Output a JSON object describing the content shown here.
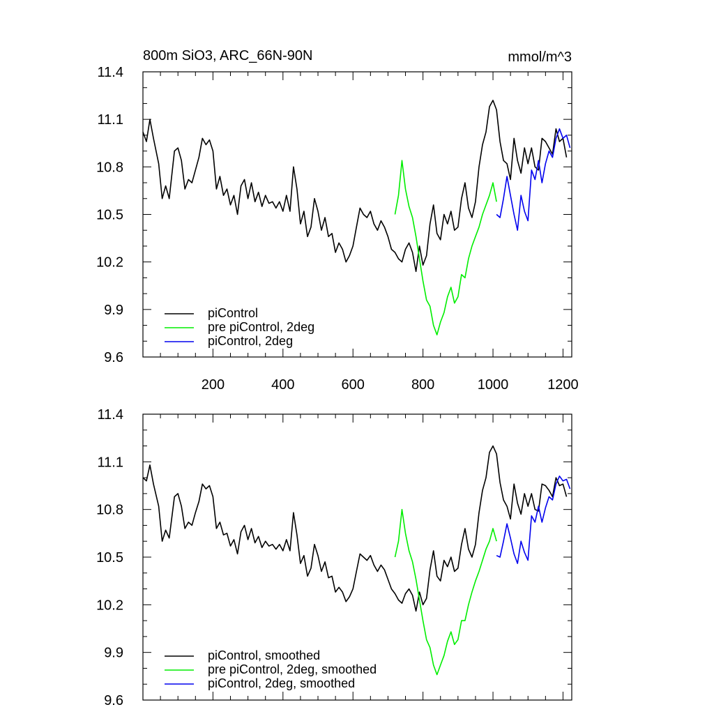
{
  "chart_data": [
    {
      "type": "line",
      "title": "800m SiO3, ARC_66N-90N",
      "units": "mmol/m^3",
      "xlim": [
        0,
        1225
      ],
      "ylim": [
        9.6,
        11.4
      ],
      "xticks": [
        200,
        400,
        600,
        800,
        1000,
        1200
      ],
      "xtick_labels": [
        "200",
        "400",
        "600",
        "800",
        "1000",
        "1200"
      ],
      "yticks": [
        9.6,
        9.9,
        10.2,
        10.5,
        10.8,
        11.1,
        11.4
      ],
      "ytick_labels": [
        "9.6",
        "9.9",
        "10.2",
        "10.5",
        "10.8",
        "11.1",
        "11.4"
      ],
      "legend_position": "bottom-left",
      "series": [
        {
          "name": "piControl",
          "color": "#000000",
          "x": [
            0,
            10,
            20,
            30,
            45,
            55,
            65,
            75,
            90,
            100,
            110,
            120,
            130,
            140,
            150,
            160,
            170,
            180,
            190,
            200,
            210,
            220,
            230,
            240,
            250,
            260,
            270,
            280,
            290,
            300,
            310,
            320,
            330,
            340,
            350,
            360,
            370,
            380,
            390,
            400,
            410,
            420,
            430,
            440,
            450,
            460,
            470,
            480,
            490,
            500,
            510,
            520,
            530,
            540,
            550,
            560,
            570,
            580,
            590,
            600,
            610,
            620,
            630,
            640,
            650,
            660,
            670,
            680,
            690,
            700,
            710,
            720,
            730,
            740,
            750,
            760,
            770,
            780,
            790,
            800,
            810,
            820,
            830,
            840,
            850,
            860,
            870,
            880,
            890,
            900,
            910,
            920,
            930,
            940,
            950,
            960,
            970,
            980,
            990,
            1000,
            1010,
            1020,
            1030,
            1040,
            1050,
            1060,
            1070,
            1080,
            1090,
            1100,
            1110,
            1120,
            1130,
            1140,
            1150,
            1160,
            1170,
            1180,
            1190,
            1200,
            1210
          ],
          "y": [
            11.02,
            10.96,
            11.1,
            10.98,
            10.82,
            10.6,
            10.68,
            10.6,
            10.9,
            10.92,
            10.84,
            10.66,
            10.72,
            10.7,
            10.78,
            10.86,
            10.98,
            10.94,
            10.97,
            10.9,
            10.66,
            10.74,
            10.62,
            10.66,
            10.56,
            10.62,
            10.5,
            10.68,
            10.72,
            10.6,
            10.7,
            10.58,
            10.64,
            10.55,
            10.62,
            10.57,
            10.58,
            10.54,
            10.58,
            10.52,
            10.62,
            10.52,
            10.8,
            10.66,
            10.44,
            10.52,
            10.36,
            10.42,
            10.6,
            10.52,
            10.4,
            10.48,
            10.36,
            10.38,
            10.26,
            10.32,
            10.28,
            10.2,
            10.24,
            10.3,
            10.42,
            10.54,
            10.5,
            10.48,
            10.52,
            10.44,
            10.4,
            10.46,
            10.42,
            10.36,
            10.28,
            10.26,
            10.22,
            10.2,
            10.28,
            10.32,
            10.26,
            10.14,
            10.3,
            10.18,
            10.24,
            10.44,
            10.56,
            10.38,
            10.34,
            10.5,
            10.44,
            10.52,
            10.4,
            10.42,
            10.6,
            10.7,
            10.54,
            10.48,
            10.58,
            10.8,
            10.94,
            11.02,
            11.18,
            11.22,
            11.16,
            10.96,
            10.84,
            10.82,
            10.72,
            10.98,
            10.84,
            10.76,
            10.92,
            10.82,
            10.92,
            10.8,
            10.78,
            10.98,
            10.96,
            10.92,
            10.88,
            11.04,
            10.96,
            10.98,
            10.86
          ]
        },
        {
          "name": "pre piControl, 2deg",
          "color": "#00ee00",
          "x": [
            720,
            730,
            740,
            750,
            760,
            770,
            780,
            790,
            800,
            810,
            820,
            830,
            840,
            850,
            860,
            870,
            880,
            890,
            900,
            910,
            920,
            930,
            940,
            950,
            960,
            970,
            980,
            990,
            1000,
            1010
          ],
          "y": [
            10.5,
            10.62,
            10.84,
            10.66,
            10.55,
            10.48,
            10.36,
            10.22,
            10.08,
            9.96,
            9.92,
            9.8,
            9.74,
            9.82,
            9.88,
            9.98,
            10.04,
            9.94,
            9.98,
            10.12,
            10.1,
            10.22,
            10.3,
            10.36,
            10.42,
            10.5,
            10.56,
            10.62,
            10.7,
            10.58
          ]
        },
        {
          "name": "piControl, 2deg",
          "color": "#0000ee",
          "x": [
            1010,
            1020,
            1030,
            1040,
            1050,
            1060,
            1070,
            1080,
            1090,
            1100,
            1110,
            1120,
            1130,
            1140,
            1150,
            1160,
            1170,
            1180,
            1190,
            1200,
            1210,
            1220
          ],
          "y": [
            10.5,
            10.48,
            10.6,
            10.74,
            10.62,
            10.5,
            10.4,
            10.62,
            10.52,
            10.46,
            10.78,
            10.72,
            10.84,
            10.7,
            10.82,
            10.9,
            10.86,
            10.98,
            11.04,
            10.98,
            11.0,
            10.92
          ]
        }
      ]
    },
    {
      "type": "line",
      "xlim": [
        0,
        1225
      ],
      "ylim": [
        9.6,
        11.4
      ],
      "xticks": [
        200,
        400,
        600,
        800,
        1000,
        1200
      ],
      "yticks": [
        9.6,
        9.9,
        10.2,
        10.5,
        10.8,
        11.1,
        11.4
      ],
      "ytick_labels": [
        "9.6",
        "9.9",
        "10.2",
        "10.5",
        "10.8",
        "11.1",
        "11.4"
      ],
      "legend_position": "bottom-left",
      "series": [
        {
          "name": "piControl, smoothed",
          "color": "#000000",
          "x": [
            0,
            10,
            20,
            30,
            45,
            55,
            65,
            75,
            90,
            100,
            110,
            120,
            130,
            140,
            150,
            160,
            170,
            180,
            190,
            200,
            210,
            220,
            230,
            240,
            250,
            260,
            270,
            280,
            290,
            300,
            310,
            320,
            330,
            340,
            350,
            360,
            370,
            380,
            390,
            400,
            410,
            420,
            430,
            440,
            450,
            460,
            470,
            480,
            490,
            500,
            510,
            520,
            530,
            540,
            550,
            560,
            570,
            580,
            590,
            600,
            610,
            620,
            630,
            640,
            650,
            660,
            670,
            680,
            690,
            700,
            710,
            720,
            730,
            740,
            750,
            760,
            770,
            780,
            790,
            800,
            810,
            820,
            830,
            840,
            850,
            860,
            870,
            880,
            890,
            900,
            910,
            920,
            930,
            940,
            950,
            960,
            970,
            980,
            990,
            1000,
            1010,
            1020,
            1030,
            1040,
            1050,
            1060,
            1070,
            1080,
            1090,
            1100,
            1110,
            1120,
            1130,
            1140,
            1150,
            1160,
            1170,
            1180,
            1190,
            1200,
            1210
          ],
          "y": [
            11.0,
            10.98,
            11.08,
            10.96,
            10.82,
            10.6,
            10.67,
            10.62,
            10.88,
            10.9,
            10.82,
            10.68,
            10.72,
            10.7,
            10.78,
            10.85,
            10.96,
            10.93,
            10.95,
            10.88,
            10.68,
            10.72,
            10.64,
            10.65,
            10.57,
            10.61,
            10.52,
            10.66,
            10.7,
            10.61,
            10.68,
            10.59,
            10.63,
            10.56,
            10.6,
            10.57,
            10.58,
            10.55,
            10.58,
            10.54,
            10.61,
            10.54,
            10.78,
            10.64,
            10.46,
            10.51,
            10.38,
            10.43,
            10.58,
            10.51,
            10.41,
            10.47,
            10.37,
            10.38,
            10.28,
            10.31,
            10.28,
            10.22,
            10.25,
            10.3,
            10.41,
            10.52,
            10.5,
            10.48,
            10.51,
            10.45,
            10.41,
            10.45,
            10.42,
            10.36,
            10.3,
            10.27,
            10.23,
            10.21,
            10.27,
            10.3,
            10.26,
            10.16,
            10.28,
            10.2,
            10.24,
            10.42,
            10.54,
            10.38,
            10.35,
            10.48,
            10.44,
            10.5,
            10.41,
            10.43,
            10.58,
            10.68,
            10.55,
            10.5,
            10.58,
            10.78,
            10.92,
            11.0,
            11.16,
            11.2,
            11.15,
            10.97,
            10.86,
            10.82,
            10.74,
            10.96,
            10.84,
            10.77,
            10.9,
            10.82,
            10.9,
            10.8,
            10.79,
            10.96,
            10.95,
            10.92,
            10.88,
            11.0,
            10.95,
            10.96,
            10.88
          ]
        },
        {
          "name": "pre piControl, 2deg, smoothed",
          "color": "#00ee00",
          "x": [
            720,
            730,
            740,
            750,
            760,
            770,
            780,
            790,
            800,
            810,
            820,
            830,
            840,
            850,
            860,
            870,
            880,
            890,
            900,
            910,
            920,
            930,
            940,
            950,
            960,
            970,
            980,
            990,
            1000,
            1010
          ],
          "y": [
            10.5,
            10.6,
            10.8,
            10.65,
            10.54,
            10.47,
            10.36,
            10.23,
            10.1,
            9.98,
            9.93,
            9.82,
            9.76,
            9.82,
            9.88,
            9.97,
            10.03,
            9.95,
            9.98,
            10.1,
            10.1,
            10.2,
            10.28,
            10.35,
            10.41,
            10.48,
            10.55,
            10.6,
            10.68,
            10.6
          ]
        },
        {
          "name": "piControl, 2deg, smoothed",
          "color": "#0000ee",
          "x": [
            1010,
            1020,
            1030,
            1040,
            1050,
            1060,
            1070,
            1080,
            1090,
            1100,
            1110,
            1120,
            1130,
            1140,
            1150,
            1160,
            1170,
            1180,
            1190,
            1200,
            1210,
            1220
          ],
          "y": [
            10.51,
            10.5,
            10.6,
            10.71,
            10.62,
            10.52,
            10.46,
            10.6,
            10.53,
            10.48,
            10.76,
            10.72,
            10.82,
            10.72,
            10.81,
            10.88,
            10.86,
            10.96,
            11.01,
            10.98,
            10.99,
            10.93
          ]
        }
      ]
    }
  ]
}
